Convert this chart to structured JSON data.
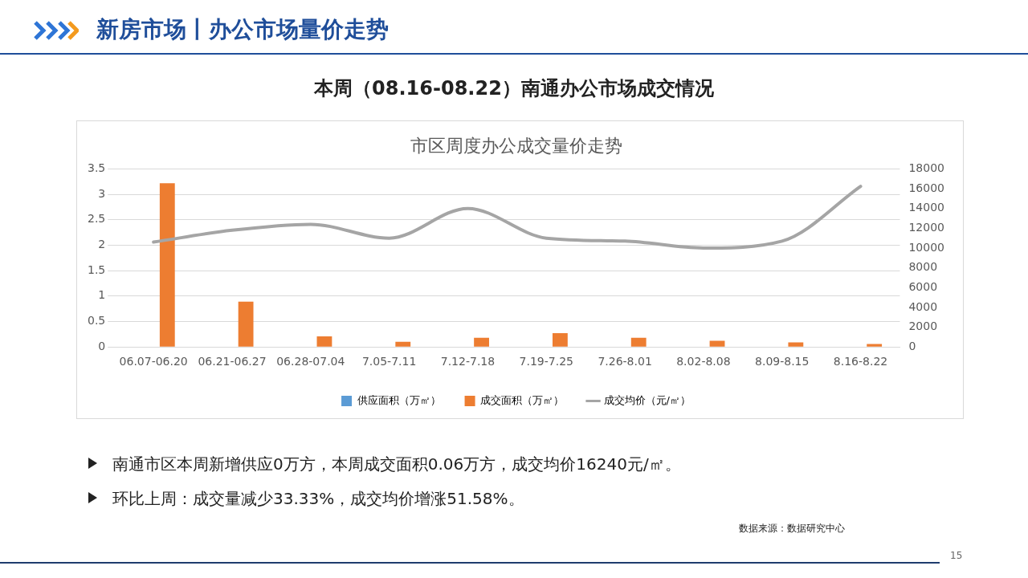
{
  "chart_data": {
    "type": "bar",
    "title": "市区周度办公成交量价走势",
    "categories": [
      "06.07-06.20",
      "06.21-06.27",
      "06.28-07.04",
      "7.05-7.11",
      "7.12-7.18",
      "7.19-7.25",
      "7.26-8.01",
      "8.02-8.08",
      "8.09-8.15",
      "8.16-8.22"
    ],
    "series": [
      {
        "name": "供应面积（万㎡）",
        "color": "#5b9bd5",
        "values": [
          0,
          0,
          0,
          0,
          0,
          0,
          0,
          0,
          0,
          0
        ]
      },
      {
        "name": "成交面积（万㎡）",
        "color": "#ed7d31",
        "values": [
          3.22,
          0.89,
          0.21,
          0.1,
          0.18,
          0.27,
          0.18,
          0.12,
          0.09,
          0.06
        ]
      },
      {
        "name": "成交均价（元/㎡）",
        "type": "line",
        "axis": "y2",
        "color": "#a5a5a5",
        "values": [
          10600,
          11800,
          12400,
          11000,
          14000,
          11000,
          10700,
          10000,
          10700,
          16240
        ]
      }
    ],
    "ylim": [
      0,
      3.5
    ],
    "yticks": [
      0,
      0.5,
      1,
      1.5,
      2,
      2.5,
      3,
      3.5
    ],
    "y2lim": [
      0,
      18000
    ],
    "y2ticks": [
      0,
      2000,
      4000,
      6000,
      8000,
      10000,
      12000,
      14000,
      16000,
      18000
    ],
    "grid": "y",
    "legend": "bottom",
    "marker": "none",
    "annotations": [
      "新房市场丨办公市场量价走势",
      "本周（08.16-08.22）南通办公市场成交情况",
      "南通市区本周新增供应0万方，本周成交面积0.06万方，成交均价16240元/㎡。",
      "环比上周：成交量减少33.33%，成交均价增涨51.58%。",
      "数据来源：数据研究中心",
      "15"
    ]
  }
}
